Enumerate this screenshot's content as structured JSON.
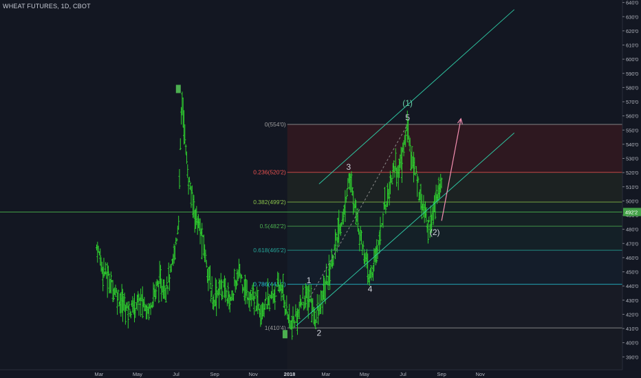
{
  "header": {
    "title": "WHEAT FUTURES, 1D, CBOT"
  },
  "chart_data": {
    "type": "ohlc",
    "symbol": "WHEAT FUTURES",
    "interval": "1D",
    "exchange": "CBOT",
    "price_axis": {
      "range": [
        380,
        640
      ],
      "ticks": [
        "390'0",
        "400'0",
        "410'0",
        "420'0",
        "430'0",
        "440'0",
        "450'0",
        "460'0",
        "470'0",
        "480'0",
        "490'0",
        "500'0",
        "510'0",
        "520'0",
        "530'0",
        "540'0",
        "550'0",
        "560'0",
        "570'0",
        "580'0",
        "590'0",
        "600'0",
        "610'0",
        "620'0",
        "630'0",
        "640'0"
      ]
    },
    "time_axis": {
      "ticks": [
        "Mar",
        "May",
        "Jul",
        "Sep",
        "Nov",
        "2018",
        "Mar",
        "May",
        "Jul",
        "Sep",
        "Nov"
      ]
    },
    "last_price_label": "492'2",
    "series_color": "#2fd12f",
    "price_path": [
      [
        2017.15,
        468
      ],
      [
        2017.18,
        452
      ],
      [
        2017.22,
        440
      ],
      [
        2017.26,
        428
      ],
      [
        2017.3,
        423
      ],
      [
        2017.34,
        430
      ],
      [
        2017.38,
        424
      ],
      [
        2017.42,
        442
      ],
      [
        2017.45,
        438
      ],
      [
        2017.48,
        450
      ],
      [
        2017.51,
        482
      ],
      [
        2017.525,
        575
      ],
      [
        2017.535,
        555
      ],
      [
        2017.55,
        520
      ],
      [
        2017.57,
        502
      ],
      [
        2017.59,
        488
      ],
      [
        2017.62,
        470
      ],
      [
        2017.64,
        452
      ],
      [
        2017.66,
        430
      ],
      [
        2017.7,
        440
      ],
      [
        2017.74,
        430
      ],
      [
        2017.78,
        450
      ],
      [
        2017.81,
        435
      ],
      [
        2017.84,
        430
      ],
      [
        2017.88,
        425
      ],
      [
        2017.92,
        432
      ],
      [
        2017.96,
        440
      ],
      [
        2017.98,
        428
      ],
      [
        2018.0,
        415
      ],
      [
        2018.01,
        410
      ],
      [
        2018.03,
        418
      ],
      [
        2018.06,
        430
      ],
      [
        2018.09,
        432
      ],
      [
        2018.11,
        418
      ],
      [
        2018.13,
        422
      ],
      [
        2018.16,
        440
      ],
      [
        2018.19,
        460
      ],
      [
        2018.22,
        480
      ],
      [
        2018.24,
        490
      ],
      [
        2018.26,
        518
      ],
      [
        2018.29,
        495
      ],
      [
        2018.31,
        478
      ],
      [
        2018.33,
        462
      ],
      [
        2018.35,
        445
      ],
      [
        2018.37,
        452
      ],
      [
        2018.39,
        470
      ],
      [
        2018.41,
        488
      ],
      [
        2018.44,
        510
      ],
      [
        2018.46,
        525
      ],
      [
        2018.48,
        520
      ],
      [
        2018.5,
        535
      ],
      [
        2018.52,
        554
      ],
      [
        2018.54,
        528
      ],
      [
        2018.57,
        510
      ],
      [
        2018.59,
        495
      ],
      [
        2018.61,
        482
      ],
      [
        2018.63,
        488
      ],
      [
        2018.65,
        505
      ],
      [
        2018.67,
        514
      ]
    ],
    "markers": [
      {
        "t": 2017.51,
        "price": 579,
        "color": "#4caf50"
      },
      {
        "t": 2017.98,
        "price": 406,
        "color": "#4caf50"
      }
    ],
    "fibonacci": [
      {
        "level": "0",
        "price": 554,
        "label": "0(554'0)",
        "color": "#9e9e9e"
      },
      {
        "level": "0.236",
        "price": 520.2,
        "label": "0.236(520'2)",
        "color": "#ef5350"
      },
      {
        "level": "0.382",
        "price": 499.2,
        "label": "0.382(499'2)",
        "color": "#8bc34a"
      },
      {
        "level": "0.5",
        "price": 482.2,
        "label": "0.5(482'2)",
        "color": "#4caf50"
      },
      {
        "level": "0.618",
        "price": 465.2,
        "label": "0.618(465'2)",
        "color": "#26a69a"
      },
      {
        "level": "0.786",
        "price": 441.2,
        "label": "0.786(441'2)",
        "color": "#26c6da"
      },
      {
        "level": "1",
        "price": 410.4,
        "label": "1(410'4)",
        "color": "#9e9e9e"
      }
    ],
    "fib_start_t": 2017.99,
    "horizontal_line_price": 492.2,
    "channel": {
      "color": "#2ec4a0",
      "lower": {
        "t1": 2018.03,
        "p1": 412,
        "t2": 2018.99,
        "p2": 548
      },
      "upper": {
        "t1": 2018.13,
        "p1": 512,
        "t2": 2018.99,
        "p2": 635
      }
    },
    "dashed_line": {
      "t1": 2018.09,
      "p1": 432,
      "t2": 2018.52,
      "p2": 554,
      "color": "#8a8a8a"
    },
    "projection_arrow": {
      "t1": 2018.67,
      "p1": 486,
      "t2": 2018.755,
      "p2": 558,
      "color": "#f48fb1"
    },
    "wave_labels": [
      {
        "text": "1",
        "t": 2018.085,
        "price": 442,
        "color": "#d1d4dc"
      },
      {
        "text": "2",
        "t": 2018.13,
        "price": 405,
        "color": "#d1d4dc"
      },
      {
        "text": "3",
        "t": 2018.26,
        "price": 522,
        "color": "#d1d4dc"
      },
      {
        "text": "4",
        "t": 2018.355,
        "price": 436,
        "color": "#d1d4dc"
      },
      {
        "text": "5",
        "t": 2018.52,
        "price": 557,
        "color": "#d1d4dc"
      },
      {
        "text": "(1)",
        "t": 2018.52,
        "price": 567,
        "color": "#69d0a8"
      },
      {
        "text": "(2)",
        "t": 2018.64,
        "price": 476,
        "color": "#d1d4dc"
      }
    ]
  }
}
